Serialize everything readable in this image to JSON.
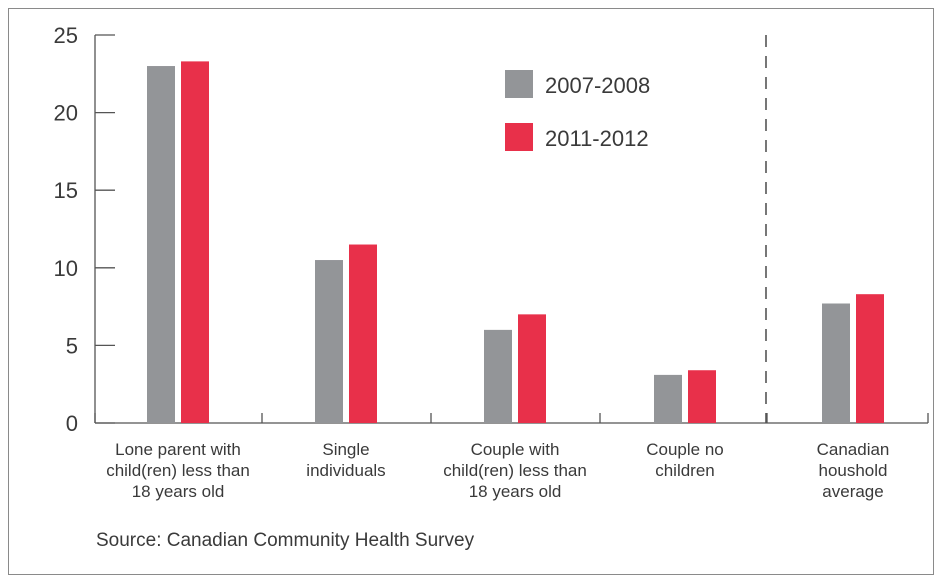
{
  "chart_data": {
    "type": "bar",
    "categories": [
      [
        "Lone parent with",
        "child(ren) less than",
        "18 years old"
      ],
      [
        "Single",
        "individuals"
      ],
      [
        "Couple with",
        "child(ren) less than",
        "18 years old"
      ],
      [
        "Couple no",
        "children"
      ],
      [
        "Canadian",
        "houshold",
        "average"
      ]
    ],
    "series": [
      {
        "name": "2007-2008",
        "color": "#939598",
        "values": [
          23.0,
          10.5,
          6.0,
          3.1,
          7.7
        ]
      },
      {
        "name": "2011-2012",
        "color": "#e8304a",
        "values": [
          23.3,
          11.5,
          7.0,
          3.4,
          8.3
        ]
      }
    ],
    "ylim": [
      0,
      25
    ],
    "yticks": [
      0,
      5,
      10,
      15,
      20,
      25
    ],
    "legend_position": "top-center",
    "separator_before_category": 4,
    "source": "Source: Canadian Community Health Survey"
  }
}
